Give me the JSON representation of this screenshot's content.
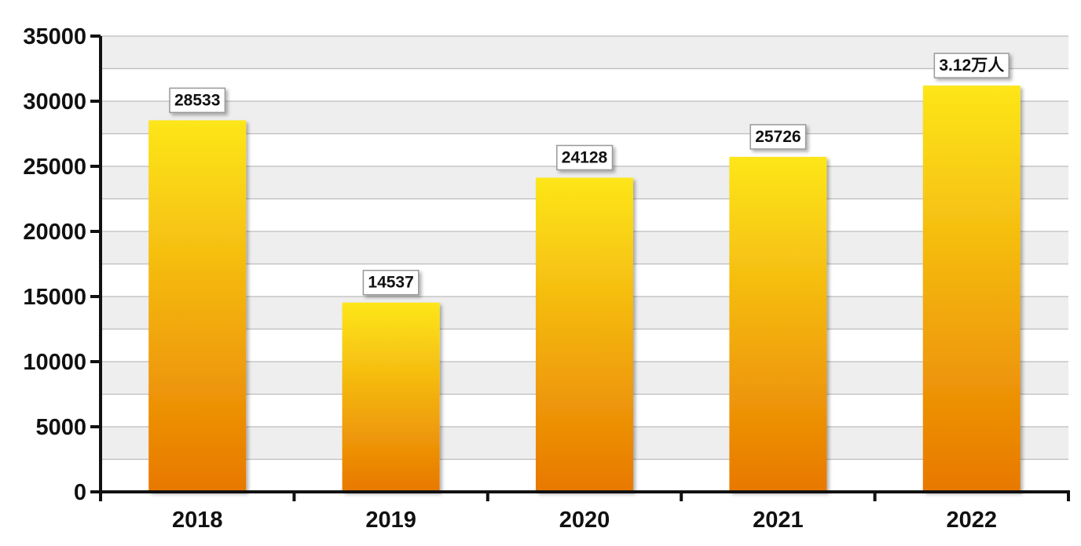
{
  "chart_data": {
    "type": "bar",
    "title": "",
    "xlabel": "",
    "ylabel": "",
    "categories": [
      "2018",
      "2019",
      "2020",
      "2021",
      "2022"
    ],
    "values": [
      28533,
      14537,
      24128,
      25726,
      31200
    ],
    "data_labels": [
      "28533",
      "14537",
      "24128",
      "25726",
      "3.12万人"
    ],
    "ylim": [
      0,
      35000
    ],
    "yticks": [
      0,
      5000,
      10000,
      15000,
      20000,
      25000,
      30000,
      35000
    ],
    "ytick_labels": [
      "0",
      "5000",
      "10000",
      "15000",
      "20000",
      "25000",
      "30000",
      "35000"
    ],
    "grid": true,
    "legend": "none",
    "colors": {
      "bar_top": "#fde61a",
      "bar_bottom": "#e87800",
      "band_shaded": "#eeeeee",
      "band_plain": "#ffffff",
      "gridline": "#bdbdbd",
      "axis": "#111111",
      "label_box_border": "#999999"
    }
  }
}
